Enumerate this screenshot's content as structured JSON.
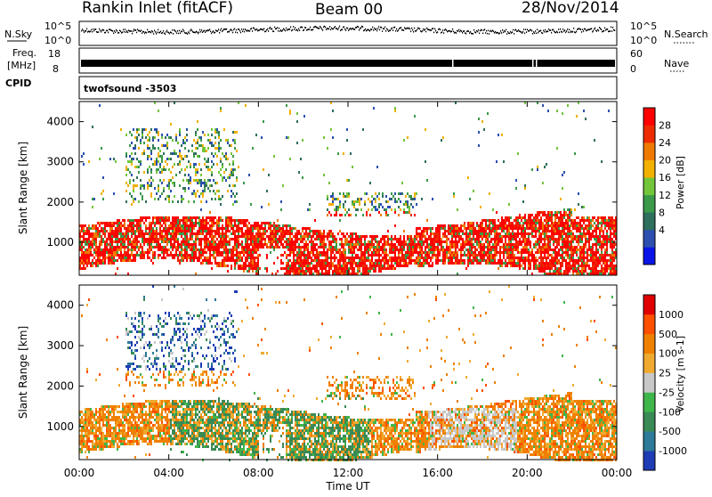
{
  "header": {
    "station": "Rankin Inlet (fitACF)",
    "beam": "Beam 00",
    "date": "28/Nov/2014"
  },
  "noise_panel": {
    "left_label": "N.Sky",
    "right_label": "N.Search",
    "left_ticks": [
      "10^5",
      "10^0"
    ],
    "right_ticks": [
      "10^5",
      "10^0"
    ]
  },
  "freq_panel": {
    "left_label_1": "Freq.",
    "left_label_2": "[MHz]",
    "right_label": "Nave",
    "left_ticks": [
      "18",
      "8"
    ],
    "right_ticks": [
      "60",
      "0"
    ]
  },
  "cpid": {
    "label": "CPID",
    "value": "twofsound -3503"
  },
  "chart_data": [
    {
      "type": "heatmap",
      "quantity": "power",
      "ylabel": "Slant Range [km]",
      "xlabel": "Time UT",
      "x_ticks": [
        "00:00",
        "04:00",
        "08:00",
        "12:00",
        "16:00",
        "20:00",
        "00:00"
      ],
      "xlim_hours": [
        0,
        24
      ],
      "ylim_km": [
        180,
        4500
      ],
      "y_ticks": [
        1000,
        2000,
        3000,
        4000
      ],
      "colorbar": {
        "label": "Power [dB]",
        "ticks": [
          "28",
          "24",
          "20",
          "16",
          "12",
          "8",
          "4"
        ],
        "colors": [
          "#0a14e6",
          "#2c4fb0",
          "#2f6f5e",
          "#3a9a4a",
          "#73c53a",
          "#f2b000",
          "#f07a00",
          "#ee2a00",
          "#ff0000"
        ]
      }
    },
    {
      "type": "heatmap",
      "quantity": "velocity",
      "ylabel": "Slant Range [km]",
      "xlabel": "Time UT",
      "x_ticks": [
        "00:00",
        "04:00",
        "08:00",
        "12:00",
        "16:00",
        "20:00",
        "00:00"
      ],
      "xlim_hours": [
        0,
        24
      ],
      "ylim_km": [
        180,
        4500
      ],
      "y_ticks": [
        1000,
        2000,
        3000,
        4000
      ],
      "colorbar": {
        "label": "Velocity [m s-1]",
        "ticks": [
          "1000",
          "500",
          "100",
          "25",
          "-25",
          "-100",
          "-500",
          "-1000"
        ],
        "colors": [
          "#1e3cb4",
          "#2d7a9a",
          "#3a8a55",
          "#3fb64a",
          "#c8c8c8",
          "#f0aa30",
          "#f08000",
          "#ff5000",
          "#e00000"
        ]
      }
    }
  ]
}
